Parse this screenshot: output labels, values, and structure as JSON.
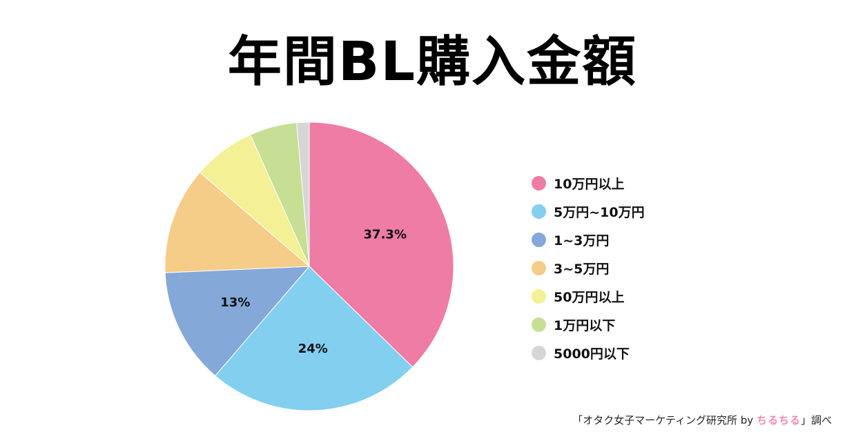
{
  "title": "年間BL購入金額",
  "chart_data": {
    "type": "pie",
    "title": "年間BL購入金額",
    "legend_position": "right",
    "slices": [
      {
        "label": "10万円以上",
        "value": 37.3,
        "color": "#ee7ca4",
        "data_label": "37.3%"
      },
      {
        "label": "5万円~10万円",
        "value": 24,
        "color": "#82cff0",
        "data_label": "24%"
      },
      {
        "label": "1~3万円",
        "value": 13,
        "color": "#84a8d8",
        "data_label": "13%"
      },
      {
        "label": "3~5万円",
        "value": 12,
        "color": "#f5cc88",
        "data_label": ""
      },
      {
        "label": "50万円以上",
        "value": 7,
        "color": "#f3f096",
        "data_label": ""
      },
      {
        "label": "1万円以下",
        "value": 5.3,
        "color": "#c6df94",
        "data_label": ""
      },
      {
        "label": "5000円以下",
        "value": 1.4,
        "color": "#d6d6d6",
        "data_label": ""
      }
    ]
  },
  "source": {
    "prefix": "「オタク女子マーケティング研究所 by ",
    "brand": "ちるちる",
    "suffix": "」調べ"
  }
}
